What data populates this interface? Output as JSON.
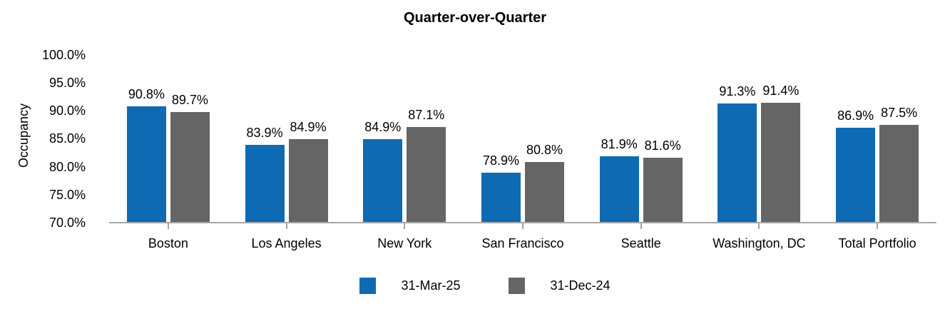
{
  "chart_data": {
    "type": "bar",
    "title": "Quarter-over-Quarter",
    "xlabel": "",
    "ylabel": "Occupancy",
    "categories": [
      "Boston",
      "Los Angeles",
      "New York",
      "San Francisco",
      "Seattle",
      "Washington, DC",
      "Total Portfolio"
    ],
    "series": [
      {
        "name": "31-Mar-25",
        "color": "#0e6ab2",
        "values": [
          90.8,
          83.9,
          84.9,
          78.9,
          81.9,
          91.3,
          86.9
        ],
        "labels": [
          "90.8%",
          "83.9%",
          "84.9%",
          "78.9%",
          "81.9%",
          "91.3%",
          "86.9%"
        ]
      },
      {
        "name": "31-Dec-24",
        "color": "#656565",
        "values": [
          89.7,
          84.9,
          87.1,
          80.8,
          81.6,
          91.4,
          87.5
        ],
        "labels": [
          "89.7%",
          "84.9%",
          "87.1%",
          "80.8%",
          "81.6%",
          "91.4%",
          "87.5%"
        ]
      }
    ],
    "y_axis": {
      "min": 70,
      "max": 100,
      "step": 5,
      "tick_labels": [
        "70.0%",
        "75.0%",
        "80.0%",
        "85.0%",
        "90.0%",
        "95.0%",
        "100.0%"
      ]
    },
    "grid": false,
    "legend_position": "bottom",
    "colors": {
      "axis_line": "#a6a6a6",
      "text": "#000000",
      "background": "#ffffff"
    }
  }
}
